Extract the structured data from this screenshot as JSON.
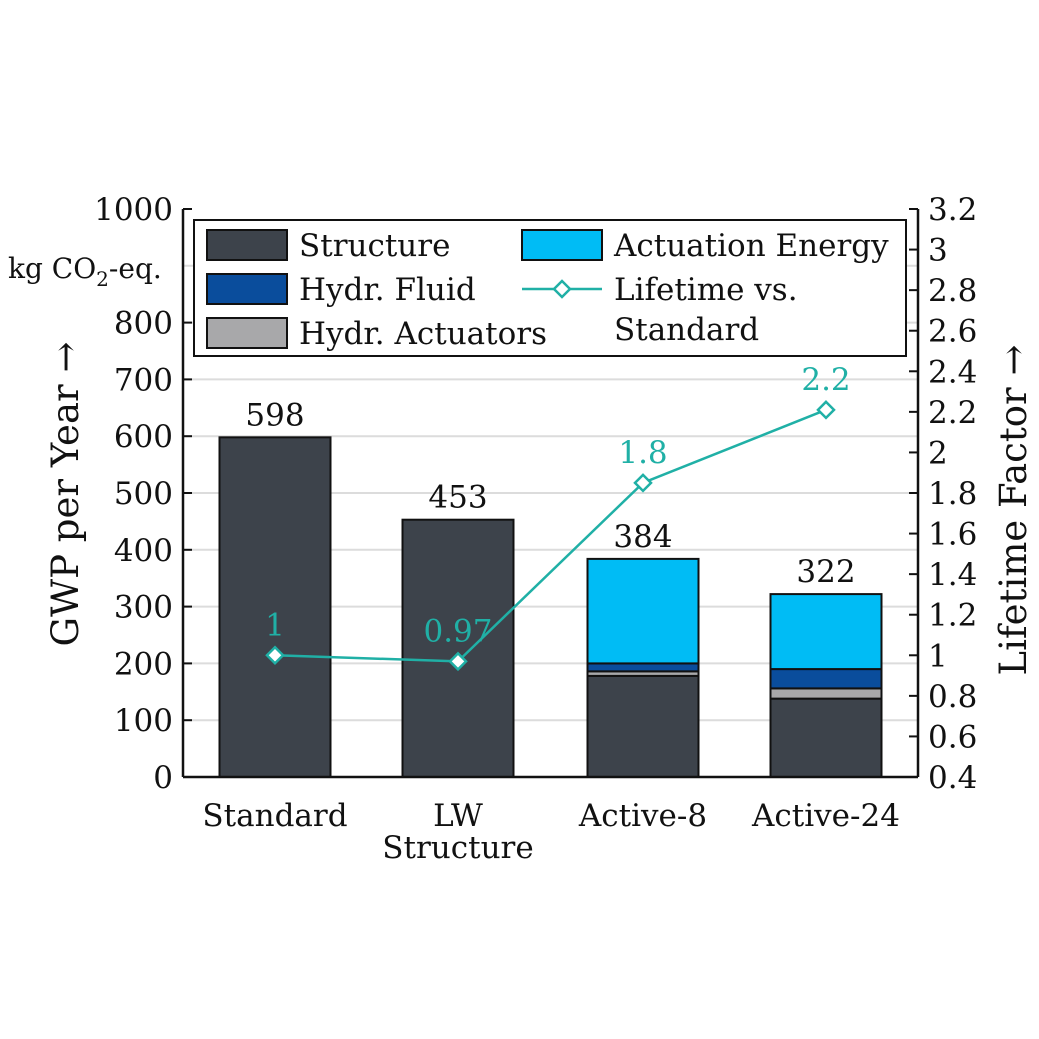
{
  "chart_data": {
    "type": "bar",
    "stacked": true,
    "categories": [
      "Standard",
      "LW|Structure",
      "Active-8",
      "Active-24"
    ],
    "ylabel": "GWP per Year →",
    "y_unit_prefix": "kg CO",
    "y_unit_subscript": "2",
    "y_unit_suffix": "-eq.",
    "y2label": "Lifetime Factor →",
    "ylim": [
      0,
      1000
    ],
    "yticks": [
      0,
      100,
      200,
      300,
      400,
      500,
      600,
      700,
      800
    ],
    "ytick_top_label": "1000",
    "y2lim": [
      0.4,
      3.2
    ],
    "y2ticks": [
      0.4,
      0.6,
      0.8,
      1,
      1.2,
      1.4,
      1.6,
      1.8,
      2,
      2.2,
      2.4,
      2.6,
      2.8,
      3,
      3.2
    ],
    "grid": true,
    "legend_position": "top",
    "series": [
      {
        "name": "Structure",
        "color": "#3d434b",
        "values": [
          598,
          453,
          178,
          138
        ]
      },
      {
        "name": "Hydr. Actuators",
        "color": "#a8a8aa",
        "values": [
          0,
          0,
          8,
          18
        ]
      },
      {
        "name": "Hydr. Fluid",
        "color": "#0a4d9c",
        "values": [
          0,
          0,
          14,
          34
        ]
      },
      {
        "name": "Actuation Energy",
        "color": "#00bcf5",
        "values": [
          0,
          0,
          184,
          132
        ]
      }
    ],
    "totals": [
      "598",
      "453",
      "384",
      "322"
    ],
    "line_series": {
      "name": "Lifetime vs.|Standard",
      "axis": "right",
      "color": "#20b0a6",
      "marker": "diamond",
      "values": [
        1.0,
        0.97,
        1.85,
        2.21
      ],
      "labels": [
        "1",
        "0.97",
        "1.8",
        "2.2"
      ]
    },
    "legend_order": [
      "Structure",
      "Actuation Energy",
      "Hydr. Fluid",
      "Lifetime vs.|Standard",
      "Hydr. Actuators"
    ]
  }
}
